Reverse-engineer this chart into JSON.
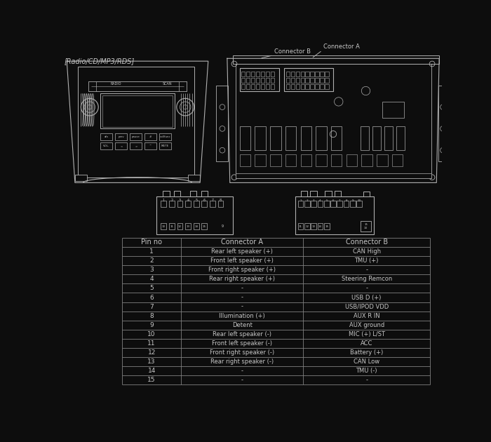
{
  "title": "[Radio/CD/MP3/RDS]",
  "background_color": "#0d0d0d",
  "text_color": "#c8c8c8",
  "line_color": "#b0b0b0",
  "table_line_color": "#808080",
  "connector_a_label": "Connector A",
  "connector_b_label": "Connector B",
  "header_row": [
    "Pin no",
    "Connector A",
    "Connector B"
  ],
  "rows": [
    [
      "1",
      "Rear left speaker (+)",
      "CAN High"
    ],
    [
      "2",
      "Front left speaker (+)",
      "TMU (+)"
    ],
    [
      "3",
      "Front right speaker (+)",
      "-"
    ],
    [
      "4",
      "Rear right speaker (+)",
      "Steering Remcon"
    ],
    [
      "5",
      "-",
      "-"
    ],
    [
      "6",
      "-",
      "USB D (+)"
    ],
    [
      "7",
      "-",
      "USB/IPOD VDD"
    ],
    [
      "8",
      "Illumination (+)",
      "AUX R IN"
    ],
    [
      "9",
      "Detent",
      "AUX ground"
    ],
    [
      "10",
      "Rear left speaker (-)",
      "MIC (+) L/ST"
    ],
    [
      "11",
      "Front left speaker (-)",
      "ACC"
    ],
    [
      "12",
      "Front right speaker (-)",
      "Battery (+)"
    ],
    [
      "13",
      "Rear right speaker (-)",
      "CAN Low"
    ],
    [
      "14",
      "-",
      "TMU (-)"
    ],
    [
      "15",
      "-",
      "-"
    ]
  ],
  "font_size_title": 7.0,
  "font_size_header": 7.0,
  "font_size_data": 6.5,
  "font_size_small": 5.0
}
